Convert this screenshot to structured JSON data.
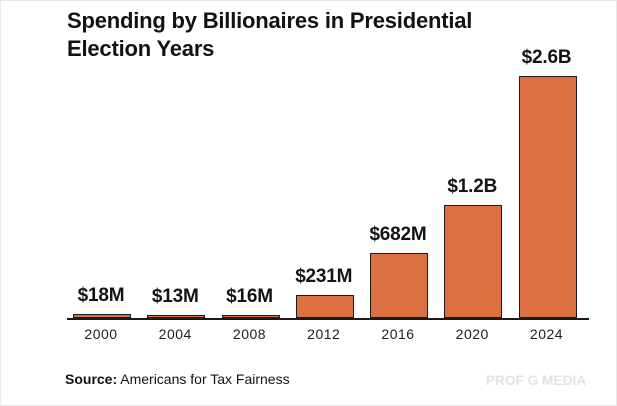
{
  "title": {
    "full": "Spending by Billionaires in Presidential Election Years",
    "line1": "Spending by Billionaires in Presidential",
    "line2": "Election Years"
  },
  "chart_data": {
    "type": "bar",
    "title": "Spending by Billionaires in Presidential Election Years",
    "categories": [
      "2000",
      "2004",
      "2008",
      "2012",
      "2016",
      "2020",
      "2024"
    ],
    "values": [
      18,
      13,
      16,
      231,
      682,
      1200,
      2600
    ],
    "value_labels": [
      "$18M",
      "$13M",
      "$16M",
      "$231M",
      "$682M",
      "$1.2B",
      "$2.6B"
    ],
    "unit": "USD millions",
    "xlabel": "",
    "ylabel": "",
    "ylim": [
      0,
      2600
    ],
    "grid": false,
    "legend": "none",
    "bar_color": "#DD7040",
    "bar_border_color": "#1C1C1C",
    "axis_color": "#1A1A1A"
  },
  "source": {
    "label": "Source:",
    "text": " Americans for Tax Fairness"
  },
  "watermark": "PROF G MEDIA"
}
